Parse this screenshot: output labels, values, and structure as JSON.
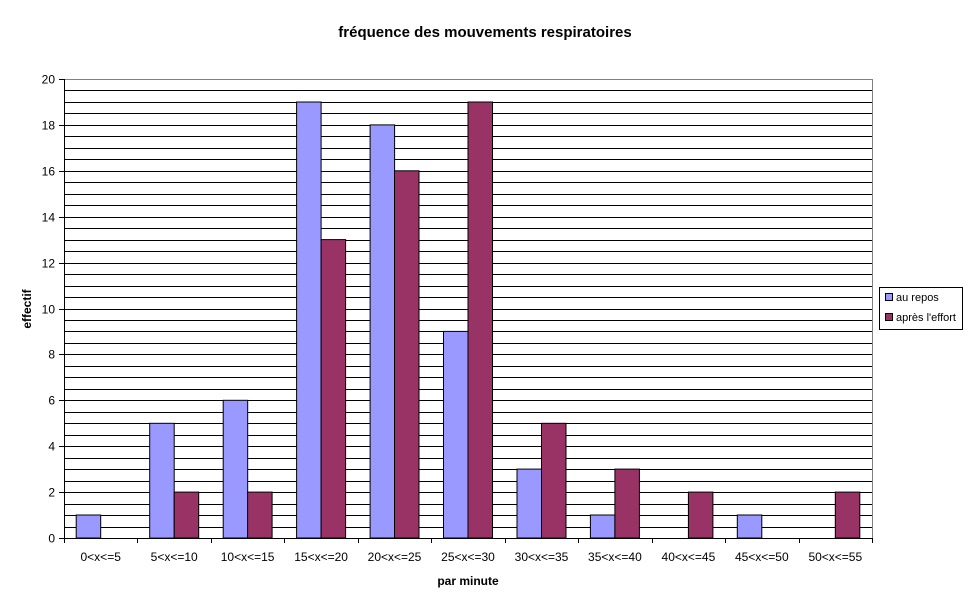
{
  "chart_data": {
    "type": "bar",
    "title": "fréquence des mouvements respiratoires",
    "xlabel": "par minute",
    "ylabel": "effectif",
    "ylim": [
      0,
      20
    ],
    "ytick_step": 2,
    "minor_grid_step": 0.5,
    "grid": true,
    "legend_position": "right",
    "categories": [
      "0<x<=5",
      "5<x<=10",
      "10<x<=15",
      "15<x<=20",
      "20<x<=25",
      "25<x<=30",
      "30<x<=35",
      "35<x<=40",
      "40<x<=45",
      "45<x<=50",
      "50<x<=55"
    ],
    "series": [
      {
        "name": "au repos",
        "color": "#9999ff",
        "values": [
          1,
          5,
          6,
          19,
          18,
          9,
          3,
          1,
          0,
          1,
          0
        ]
      },
      {
        "name": "après l'effort",
        "color": "#993366",
        "values": [
          0,
          2,
          2,
          13,
          16,
          19,
          5,
          3,
          2,
          0,
          2
        ]
      }
    ]
  }
}
